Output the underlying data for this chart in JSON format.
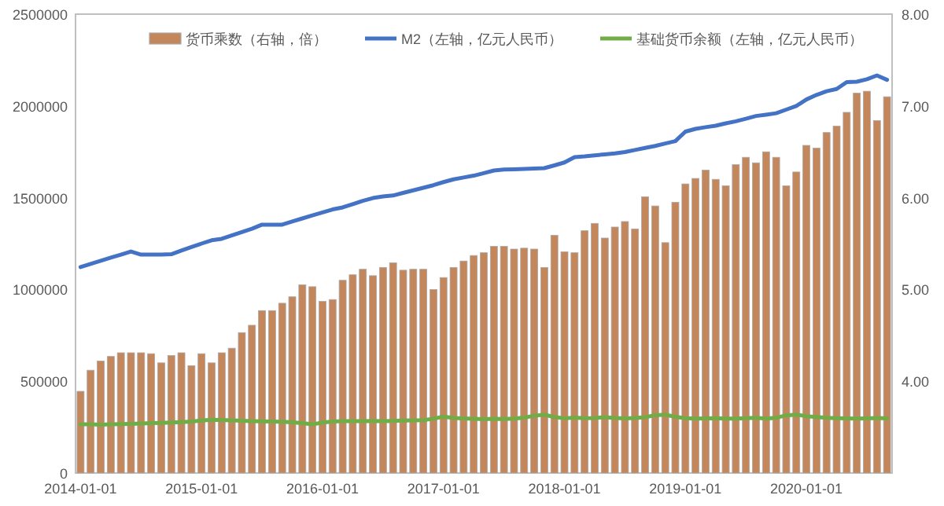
{
  "chart_data": {
    "type": "bar",
    "legend": "top",
    "grid": false,
    "categories": [
      "2014-01-01",
      null,
      null,
      null,
      null,
      null,
      null,
      null,
      null,
      null,
      null,
      null,
      "2015-01-01",
      null,
      null,
      null,
      null,
      null,
      null,
      null,
      null,
      null,
      null,
      null,
      "2016-01-01",
      null,
      null,
      null,
      null,
      null,
      null,
      null,
      null,
      null,
      null,
      null,
      "2017-01-01",
      null,
      null,
      null,
      null,
      null,
      null,
      null,
      null,
      null,
      null,
      null,
      "2018-01-01",
      null,
      null,
      null,
      null,
      null,
      null,
      null,
      null,
      null,
      null,
      null,
      "2019-01-01",
      null,
      null,
      null,
      null,
      null,
      null,
      null,
      null,
      null,
      null,
      null,
      "2020-01-01",
      null,
      null,
      null,
      null,
      null,
      null,
      null,
      null
    ],
    "ylim": [
      0,
      2500000
    ],
    "yticks": [
      0,
      500000,
      1000000,
      1500000,
      2000000,
      2500000
    ],
    "y2lim": [
      3,
      8
    ],
    "y2ticks": [
      {
        "value": 4,
        "label": "4.00"
      },
      {
        "value": 5,
        "label": "5.00"
      },
      {
        "value": 6,
        "label": "6.00"
      },
      {
        "value": 7,
        "label": "7.00"
      },
      {
        "value": 8,
        "label": "8.00"
      }
    ],
    "series": [
      {
        "name": "货币乘数（右轴，倍）",
        "axis": "y2",
        "color": "#c4875c",
        "values": [
          3.89,
          4.12,
          4.22,
          4.27,
          4.31,
          4.31,
          4.31,
          4.3,
          4.2,
          4.28,
          4.31,
          4.17,
          4.3,
          4.2,
          4.31,
          4.36,
          4.53,
          4.61,
          4.77,
          4.77,
          4.85,
          4.92,
          5.05,
          5.03,
          4.87,
          4.89,
          5.1,
          5.16,
          5.22,
          5.15,
          5.24,
          5.29,
          5.21,
          5.22,
          5.22,
          5.0,
          5.13,
          5.24,
          5.31,
          5.37,
          5.4,
          5.47,
          5.47,
          5.44,
          5.45,
          5.44,
          5.24,
          5.59,
          5.41,
          5.4,
          5.64,
          5.72,
          5.56,
          5.68,
          5.74,
          5.66,
          6.01,
          5.91,
          5.51,
          5.95,
          6.15,
          6.21,
          6.3,
          6.2,
          6.13,
          6.36,
          6.44,
          6.38,
          6.5,
          6.44,
          6.13,
          6.28,
          6.57,
          6.54,
          6.71,
          6.78,
          6.93,
          7.14,
          7.16,
          6.84,
          7.1
        ]
      },
      {
        "name": "M2（左轴，亿元人民币）",
        "type": "line",
        "color": "#4472c4",
        "values": [
          1122000,
          1139000,
          1156000,
          1173000,
          1190000,
          1207000,
          1190000,
          1190000,
          1190000,
          1192000,
          1212000,
          1231000,
          1250000,
          1268000,
          1276000,
          1294000,
          1313000,
          1331000,
          1353000,
          1353000,
          1353000,
          1370000,
          1387000,
          1404000,
          1420000,
          1436000,
          1447000,
          1465000,
          1483000,
          1498000,
          1507000,
          1512000,
          1526000,
          1540000,
          1554000,
          1568000,
          1585000,
          1600000,
          1610000,
          1620000,
          1634000,
          1648000,
          1653000,
          1655000,
          1657000,
          1659000,
          1661000,
          1676000,
          1692000,
          1721000,
          1725000,
          1731000,
          1736000,
          1741000,
          1749000,
          1760000,
          1771000,
          1782000,
          1795000,
          1808000,
          1860000,
          1875000,
          1884000,
          1892000,
          1905000,
          1916000,
          1930000,
          1945000,
          1952000,
          1960000,
          1980000,
          2000000,
          2035000,
          2060000,
          2080000,
          2092000,
          2130000,
          2132000,
          2145000,
          2166000,
          2142000
        ]
      },
      {
        "name": "基础货币余额（左轴，亿元人民币）",
        "type": "line",
        "color": "#70ad47",
        "values": [
          265000,
          265000,
          263000,
          265000,
          266000,
          268000,
          270000,
          272000,
          273000,
          275000,
          277000,
          280000,
          286000,
          290000,
          289000,
          287000,
          285000,
          283000,
          281000,
          280000,
          279000,
          276000,
          272000,
          265000,
          275000,
          280000,
          282000,
          282000,
          283000,
          284000,
          283000,
          284000,
          286000,
          287000,
          288000,
          296000,
          307000,
          300000,
          298000,
          295000,
          293000,
          295000,
          294000,
          296000,
          302000,
          312000,
          318000,
          305000,
          298000,
          302000,
          299000,
          300000,
          304000,
          300000,
          297000,
          300000,
          304000,
          315000,
          318000,
          306000,
          299000,
          296000,
          298000,
          299000,
          296000,
          296000,
          299000,
          301000,
          296000,
          301000,
          314000,
          318000,
          309000,
          305000,
          301000,
          299000,
          297000,
          296000,
          298000,
          300000,
          297000
        ]
      }
    ]
  }
}
